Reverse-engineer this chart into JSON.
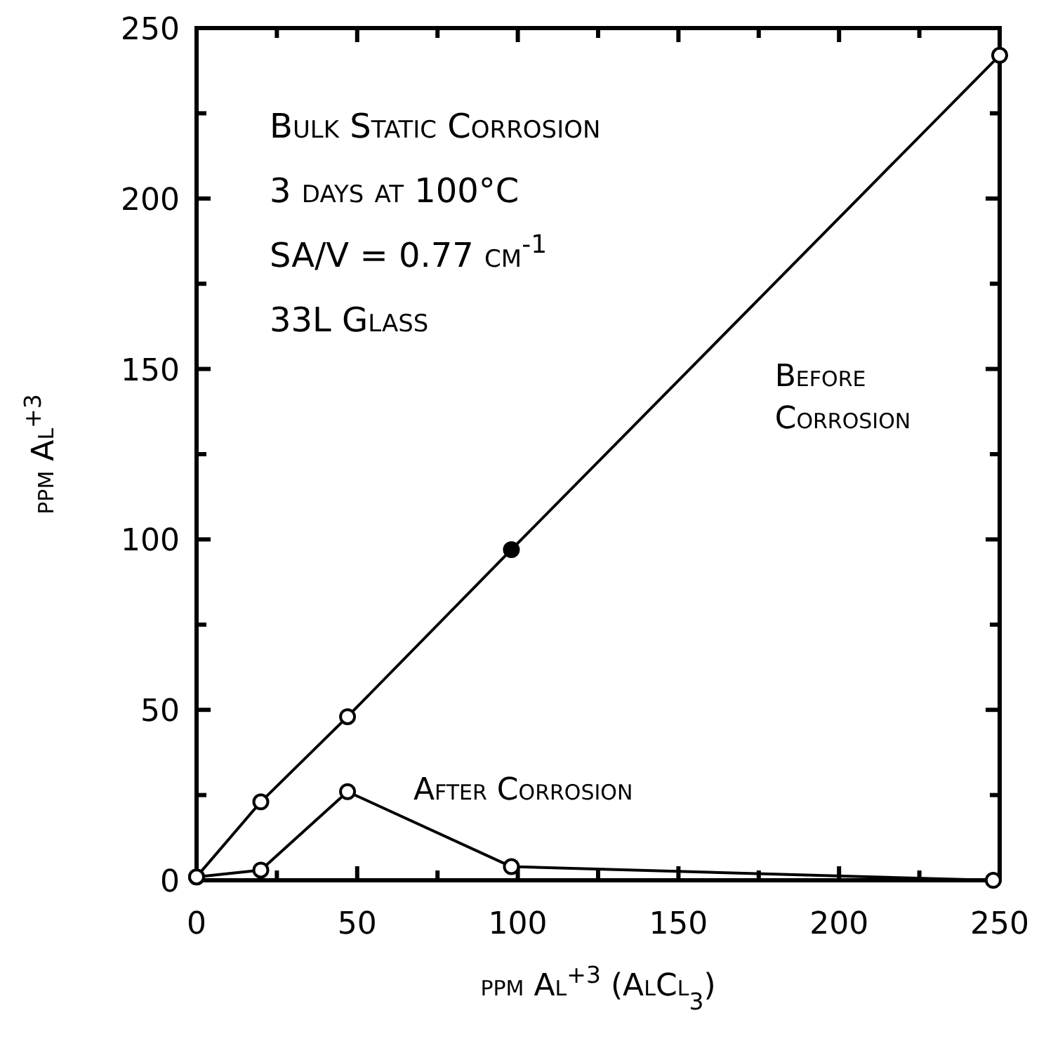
{
  "chart_data": {
    "type": "line",
    "xlabel": "ppm Al$^{+3}$ (AlCl$_{3}$)",
    "ylabel": "ppm Al$^{+3}$",
    "annotations": [
      "Bulk Static Corrosion",
      "3 days at 100°C",
      "SA/V = 0.77 cm$^{-1}$",
      "33L Glass"
    ],
    "series": [
      {
        "name": "Before Corrosion",
        "color": "#000000",
        "x": [
          0,
          20,
          47,
          98,
          250
        ],
        "values": [
          1,
          23,
          48,
          97,
          242
        ]
      },
      {
        "name": "After Corrosion",
        "color": "#000000",
        "x": [
          0,
          20,
          47,
          98,
          248
        ],
        "values": [
          1,
          3,
          26,
          4,
          0
        ]
      },
      {
        "type": "scatter",
        "color": "#000000",
        "x": [
          98
        ],
        "values": [
          97
        ]
      }
    ],
    "xlim": [
      0,
      250
    ],
    "ylim": [
      0,
      250
    ],
    "xticks": [
      0,
      {
        "value": 25,
        "label": null
      },
      50,
      {
        "value": 75,
        "label": null
      },
      100,
      {
        "value": 125,
        "label": null
      },
      150,
      {
        "value": 175,
        "label": null
      },
      200,
      {
        "value": 225,
        "label": null
      },
      250
    ],
    "yticks": [
      0,
      {
        "value": 25,
        "label": null
      },
      50,
      {
        "value": 75,
        "label": null
      },
      100,
      {
        "value": 125,
        "label": null
      },
      150,
      {
        "value": 175,
        "label": null
      },
      200,
      {
        "value": 225,
        "label": null
      },
      250
    ],
    "marker": "circle",
    "grid": false
  }
}
